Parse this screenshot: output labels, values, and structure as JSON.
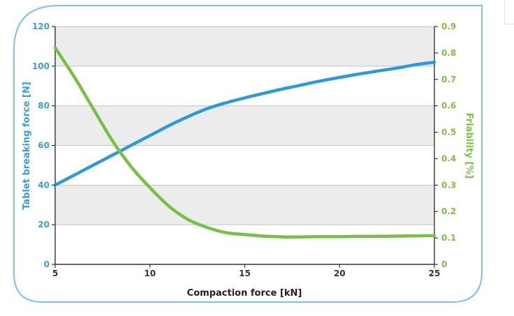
{
  "chart_data": {
    "type": "line",
    "title": "",
    "xlabel": "Compaction force [kN]",
    "ylabel_left": "Tablet breaking force [N]",
    "ylabel_right": "Friability [%]",
    "xlim": [
      5,
      25
    ],
    "ylim_left": [
      0,
      120
    ],
    "ylim_right": [
      0,
      0.9
    ],
    "x_ticks": [
      "5",
      "10",
      "15",
      "20",
      "25"
    ],
    "y_left_ticks": [
      "0",
      "20",
      "40",
      "60",
      "80",
      "100",
      "120"
    ],
    "y_right_ticks": [
      "0",
      "0.1",
      "0.2",
      "0.3",
      "0.4",
      "0.5",
      "0.6",
      "0.7",
      "0.8",
      "0.9"
    ],
    "grid": true,
    "legend": "none",
    "colors": {
      "left_axis": "#3a9fd6",
      "right_axis": "#7dc242",
      "band": "#ececec",
      "frame": "#7ec1e0"
    },
    "series": [
      {
        "axis": "left",
        "color": "#2b9ad8",
        "x": [
          5,
          6,
          7,
          8,
          9,
          10,
          11,
          12,
          13,
          14,
          15,
          16,
          17,
          18,
          19,
          20,
          21,
          22,
          23,
          24,
          25
        ],
        "values": [
          40,
          45,
          50,
          55,
          60,
          65,
          70,
          74.5,
          78.5,
          81.5,
          84,
          86.3,
          88.5,
          90.5,
          92.5,
          94.3,
          96,
          97.5,
          99,
          100.7,
          102
        ]
      },
      {
        "axis": "right",
        "color": "#76c043",
        "x": [
          5,
          6,
          7,
          8,
          9,
          10,
          11,
          12,
          13,
          14,
          15,
          16,
          17,
          18,
          19,
          20,
          21,
          22,
          23,
          24,
          25
        ],
        "values": [
          0.82,
          0.71,
          0.59,
          0.47,
          0.37,
          0.29,
          0.22,
          0.17,
          0.14,
          0.12,
          0.113,
          0.107,
          0.104,
          0.104,
          0.105,
          0.105,
          0.106,
          0.106,
          0.107,
          0.108,
          0.109
        ]
      }
    ]
  }
}
